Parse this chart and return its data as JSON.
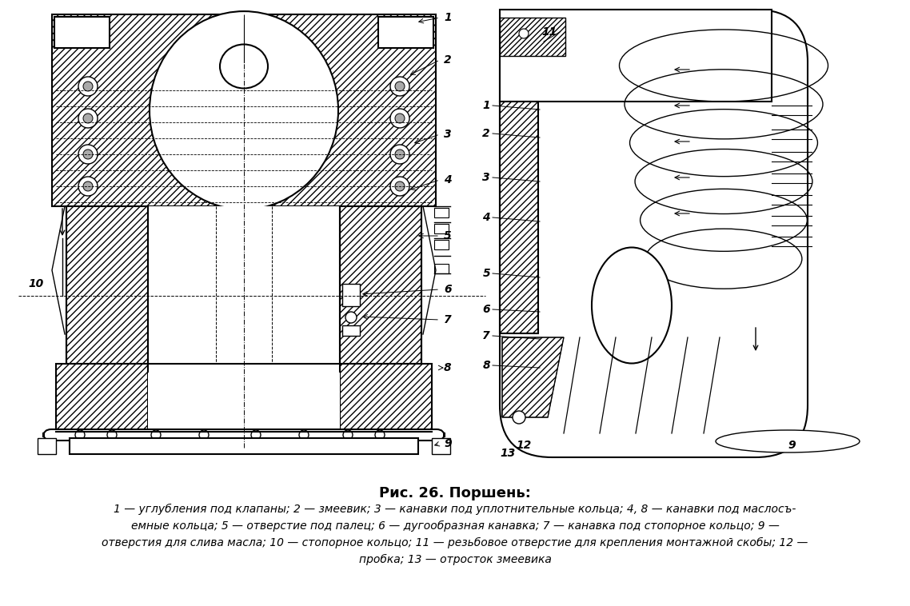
{
  "title": "Рис. 26. Поршень:",
  "caption_lines": [
    "1 — углубления под клапаны; 2 — змеевик; 3 — канавки под уплотнительные кольца; 4, 8 — канавки под маслосъ-",
    "емные кольца; 5 — отверстие под палец; 6 — дугообразная канавка; 7 — канавка под стопорное кольцо; 9 —",
    "отверстия для слива масла; 10 — стопорное кольцо; 11 — резьбовое отверстие для крепления монтажной скобы; 12 —",
    "пробка; 13 — отросток змеевика"
  ],
  "bg_color": "#ffffff",
  "line_color": "#000000",
  "title_fontsize": 13,
  "caption_fontsize": 10,
  "fig_width": 11.38,
  "fig_height": 7.58
}
